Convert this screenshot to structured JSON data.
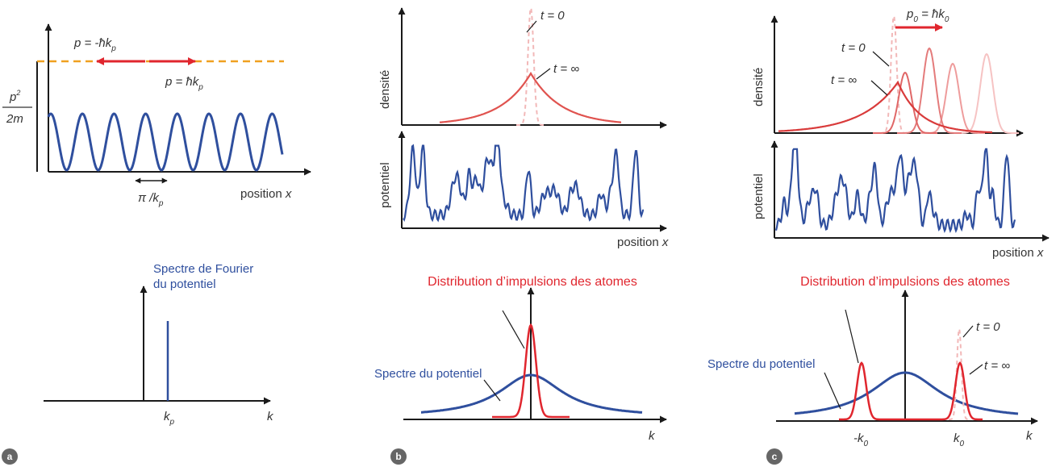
{
  "panel_a": {
    "badge": "a",
    "p_left_main": "p = -ħk",
    "p_left_sub": "p",
    "p_right_main": "p = ħk",
    "p_right_sub": "p",
    "energy_num": "p",
    "energy_num_sup": "2",
    "energy_den": "2m",
    "period_main": "π /k",
    "period_sub": "p",
    "xaxis_main": "position ",
    "xaxis_var": "x",
    "fourier_line1": "Spectre de Fourier",
    "fourier_line2": "du potentiel",
    "kp_main": "k",
    "kp_sub": "p",
    "k_axis": "k"
  },
  "panel_b": {
    "badge": "b",
    "ylabel_top": "densité",
    "ylabel_mid": "potentiel",
    "t0": "t = 0",
    "tinf": "t = ∞",
    "xaxis_main": "position ",
    "xaxis_var": "x",
    "dist_title": "Distribution d’impulsions des atomes",
    "spectrum_label": "Spectre du potentiel",
    "k_axis": "k"
  },
  "panel_c": {
    "badge": "c",
    "ylabel_top": "densité",
    "ylabel_mid": "potentiel",
    "p0_main": "p",
    "p0_sub": "0",
    "p0_eq_main": " = ħk",
    "p0_eq_sub": "0",
    "t0": "t = 0",
    "tinf": "t = ∞",
    "xaxis_main": "position ",
    "xaxis_var": "x",
    "dist_title": "Distribution d’impulsions des atomes",
    "spectrum_label": "Spectre du potentiel",
    "t0_k": "t = 0",
    "tinf_k": "t = ∞",
    "mk0_main": "-k",
    "mk0_sub": "0",
    "k0_main": "k",
    "k0_sub": "0",
    "k_axis": "k"
  },
  "colors": {
    "axis": "#1a1a1a",
    "blue": "#2f4f9e",
    "red": "#e0262e",
    "light_red": "#f2b8b8",
    "orange": "#f0a020",
    "badge": "#666666"
  }
}
